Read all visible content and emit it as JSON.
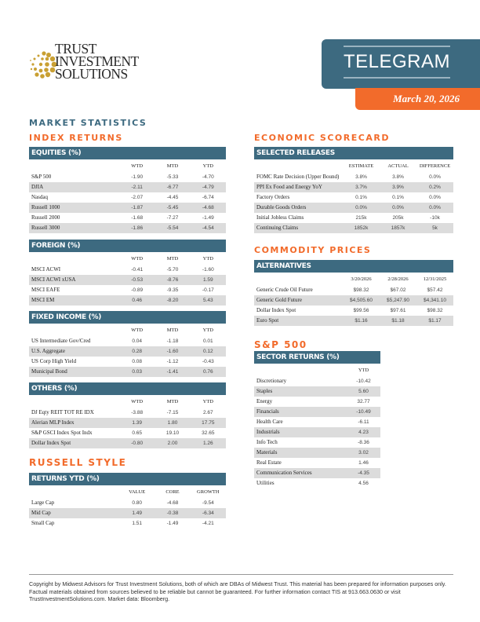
{
  "brand": {
    "logo_lines": [
      "TRUST",
      "INVESTMENT",
      "SOLUTIONS"
    ],
    "accent_blue": "#3d6a80",
    "accent_orange": "#f26b2b",
    "logo_gold": "#c9a033"
  },
  "header": {
    "title": "TELEGRAM",
    "date": "March 20, 2026"
  },
  "left": {
    "section": "MARKET STATISTICS",
    "index_returns": "INDEX RETURNS",
    "russell_style": "RUSSELL STYLE"
  },
  "right": {
    "economic_scorecard": "ECONOMIC SCORECARD",
    "commodity_prices": "COMMODITY PRICES",
    "sp500": "S&P 500"
  },
  "tables": {
    "equities": {
      "title": "EQUITIES (%)",
      "columns": [
        "WTD",
        "MTD",
        "YTD"
      ],
      "rows": [
        [
          "S&P 500",
          "-1.90",
          "-5.33",
          "-4.70"
        ],
        [
          "DJIA",
          "-2.11",
          "-6.77",
          "-4.79"
        ],
        [
          "Nasdaq",
          "-2.07",
          "-4.45",
          "-6.74"
        ],
        [
          "Russell 1000",
          "-1.87",
          "-5.45",
          "-4.68"
        ],
        [
          "Russell 2000",
          "-1.68",
          "-7.27",
          "-1.49"
        ],
        [
          "Russell 3000",
          "-1.86",
          "-5.54",
          "-4.54"
        ]
      ]
    },
    "foreign": {
      "title": "FOREIGN (%)",
      "columns": [
        "WTD",
        "MTD",
        "YTD"
      ],
      "rows": [
        [
          "MSCI ACWI",
          "-0.41",
          "-5.70",
          "-1.60"
        ],
        [
          "MSCI ACWI xUSA",
          "-0.53",
          "-8.76",
          "1.59"
        ],
        [
          "MSCI EAFE",
          "-0.89",
          "-9.35",
          "-0.17"
        ],
        [
          "MSCI EM",
          "0.46",
          "-8.20",
          "5.43"
        ]
      ]
    },
    "fixed_income": {
      "title": "FIXED INCOME (%)",
      "columns": [
        "WTD",
        "MTD",
        "YTD"
      ],
      "rows": [
        [
          "US Intermediate Gov/Cred",
          "0.04",
          "-1.18",
          "0.01"
        ],
        [
          "U.S. Aggregate",
          "0.28",
          "-1.60",
          "0.12"
        ],
        [
          "US Corp High Yield",
          "0.08",
          "-1.12",
          "-0.43"
        ],
        [
          "Municipal Bond",
          "0.03",
          "-1.41",
          "0.76"
        ]
      ]
    },
    "others": {
      "title": "OTHERS (%)",
      "columns": [
        "WTD",
        "MTD",
        "YTD"
      ],
      "rows": [
        [
          "DJ Eqty REIT TOT RE IDX",
          "-3.88",
          "-7.15",
          "2.67"
        ],
        [
          "Alerian MLP Index",
          "1.39",
          "1.80",
          "17.75"
        ],
        [
          "S&P GSCI Index Spot Indx",
          "0.65",
          "19.10",
          "32.65"
        ],
        [
          "Dollar Index Spot",
          "-0.80",
          "2.00",
          "1.26"
        ]
      ]
    },
    "russell": {
      "title": "RETURNS YTD (%)",
      "columns": [
        "VALUE",
        "CORE",
        "GROWTH"
      ],
      "rows": [
        [
          "Large Cap",
          "0.80",
          "-4.68",
          "-9.54"
        ],
        [
          "Mid Cap",
          "1.49",
          "-0.38",
          "-6.34"
        ],
        [
          "Small Cap",
          "1.51",
          "-1.49",
          "-4.21"
        ]
      ]
    },
    "releases": {
      "title": "SELECTED RELEASES",
      "columns": [
        "ESTIMATE",
        "ACTUAL",
        "DIFFERENCE"
      ],
      "rows": [
        [
          "FOMC Rate Decision (Upper Bound)",
          "3.8%",
          "3.8%",
          "0.0%"
        ],
        [
          "PPI Ex Food and Energy YoY",
          "3.7%",
          "3.9%",
          "0.2%"
        ],
        [
          "Factory Orders",
          "0.1%",
          "0.1%",
          "0.0%"
        ],
        [
          "Durable Goods Orders",
          "0.0%",
          "0.0%",
          "0.0%"
        ],
        [
          "Initial Jobless Claims",
          "215k",
          "205k",
          "-10k"
        ],
        [
          "Continuing Claims",
          "1852k",
          "1857k",
          "5k"
        ]
      ]
    },
    "alternatives": {
      "title": "ALTERNATIVES",
      "columns": [
        "3/20/2026",
        "2/28/2026",
        "12/31/2025"
      ],
      "rows": [
        [
          "Generic Crude Oil Future",
          "$98.32",
          "$67.02",
          "$57.42"
        ],
        [
          "Generic Gold Future",
          "$4,505.60",
          "$5,247.90",
          "$4,341.10"
        ],
        [
          "Dollar Index Spot",
          "$99.56",
          "$97.61",
          "$98.32"
        ],
        [
          "Euro Spot",
          "$1.16",
          "$1.18",
          "$1.17"
        ]
      ]
    },
    "sectors": {
      "title": "SECTOR RETURNS (%)",
      "columns": [
        "YTD"
      ],
      "rows": [
        [
          "Discretionary",
          "-10.42"
        ],
        [
          "Staples",
          "5.60"
        ],
        [
          "Energy",
          "32.77"
        ],
        [
          "Financials",
          "-10.49"
        ],
        [
          "Health Care",
          "-6.11"
        ],
        [
          "Industrials",
          "4.23"
        ],
        [
          "Info Tech",
          "-8.36"
        ],
        [
          "Materials",
          "3.02"
        ],
        [
          "Real Estate",
          "1.46"
        ],
        [
          "Communication Services",
          "-4.35"
        ],
        [
          "Utilities",
          "4.56"
        ]
      ]
    }
  },
  "footer": {
    "text": "Copyright by Midwest Advisors for Trust Investment Solutions, both of which are DBAs of Midwest Trust. This material has been prepared for information purposes only. Factual materials obtained from sources believed to be reliable but cannot be guaranteed. For further information contact TIS at 913.663.0630 or visit TrustInvestmentSolutions.com. Market data: Bloomberg."
  }
}
